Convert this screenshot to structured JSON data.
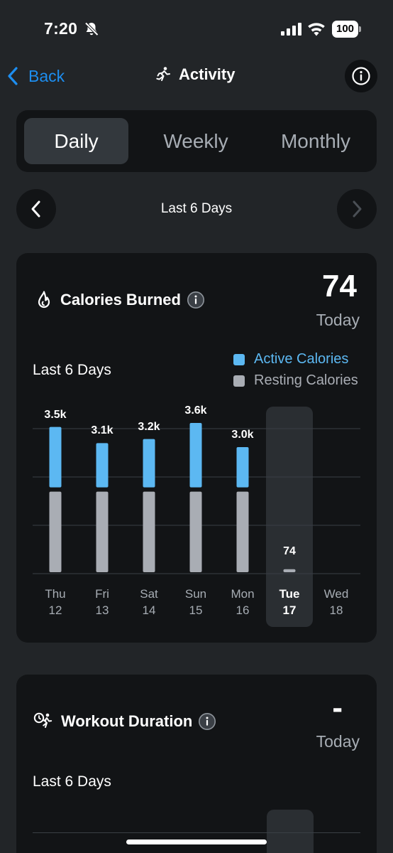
{
  "status_bar": {
    "time": "7:20",
    "battery": "100",
    "icons": [
      "bell-slash-icon",
      "signal-icon",
      "wifi-icon",
      "battery-icon"
    ]
  },
  "nav": {
    "back_label": "Back",
    "title": "Activity",
    "title_icon": "running-person-icon",
    "info_icon": "info-icon"
  },
  "tabs": [
    {
      "label": "Daily",
      "selected": true
    },
    {
      "label": "Weekly",
      "selected": false
    },
    {
      "label": "Monthly",
      "selected": false
    }
  ],
  "date_nav": {
    "label": "Last 6 Days",
    "prev_icon": "chevron-left-icon",
    "next_icon": "chevron-right-icon"
  },
  "calories_card": {
    "title": "Calories Burned",
    "title_icon": "flame-icon",
    "today_value": "74",
    "today_label": "Today",
    "range_label": "Last 6 Days",
    "legend": [
      {
        "label": "Active Calories",
        "color": "#5cb8f2"
      },
      {
        "label": "Resting Calories",
        "color": "#a9adb4"
      }
    ]
  },
  "chart_data": {
    "type": "bar",
    "stacked": true,
    "categories": [
      "Thu 12",
      "Fri 13",
      "Sat 14",
      "Sun 15",
      "Mon 16",
      "Tue 17",
      "Wed 18"
    ],
    "days": [
      {
        "day": "Thu",
        "date": "12",
        "total_label": "3.5k",
        "selected": false
      },
      {
        "day": "Fri",
        "date": "13",
        "total_label": "3.1k",
        "selected": false
      },
      {
        "day": "Sat",
        "date": "14",
        "total_label": "3.2k",
        "selected": false
      },
      {
        "day": "Sun",
        "date": "15",
        "total_label": "3.6k",
        "selected": false
      },
      {
        "day": "Mon",
        "date": "16",
        "total_label": "3.0k",
        "selected": false
      },
      {
        "day": "Tue",
        "date": "17",
        "total_label": "74",
        "selected": true
      },
      {
        "day": "Wed",
        "date": "18",
        "total_label": "",
        "selected": false
      }
    ],
    "series": [
      {
        "name": "Active Calories",
        "color": "#5cb8f2",
        "values": [
          1500,
          1100,
          1200,
          1600,
          1000,
          0,
          null
        ]
      },
      {
        "name": "Resting Calories",
        "color": "#a9adb4",
        "values": [
          2000,
          2000,
          2000,
          2000,
          2000,
          74,
          null
        ]
      }
    ],
    "totals": [
      3500,
      3100,
      3200,
      3600,
      3000,
      74,
      null
    ],
    "ylim": [
      0,
      3600
    ],
    "grid": true
  },
  "workout_card": {
    "title": "Workout Duration",
    "title_icon": "stopwatch-running-icon",
    "today_value": "-",
    "today_label": "Today",
    "range_label": "Last 6 Days"
  }
}
